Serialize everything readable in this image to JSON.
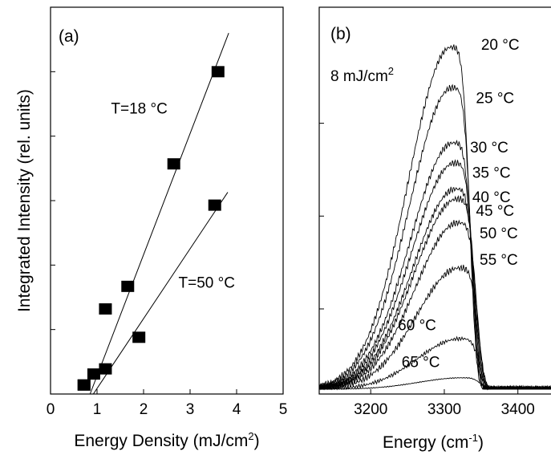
{
  "chart_data": [
    {
      "panel_label": "(a)",
      "type": "scatter",
      "xlabel": "Energy Density (mJ/cm",
      "xlabel_superscript": "2",
      "xlabel_suffix": ")",
      "ylabel": "Integrated Intensity (rel. units)",
      "xlim": [
        0,
        5
      ],
      "ylim": [
        0,
        6
      ],
      "x_ticks": [
        "0",
        "1",
        "2",
        "3",
        "4",
        "5"
      ],
      "y_ticks_labeled": false,
      "series": [
        {
          "name": "T=18 °C",
          "points": [
            {
              "x": 0.72,
              "y": 0.14
            },
            {
              "x": 0.93,
              "y": 0.31
            },
            {
              "x": 1.18,
              "y": 1.32
            },
            {
              "x": 1.66,
              "y": 1.67
            },
            {
              "x": 2.65,
              "y": 3.57
            },
            {
              "x": 3.6,
              "y": 5.0
            }
          ],
          "fit": [
            [
              0.85,
              0.0
            ],
            [
              3.83,
              5.6
            ]
          ],
          "label_pos": {
            "x": 1.3,
            "y": 4.35
          }
        },
        {
          "name": "T=50 °C",
          "points": [
            {
              "x": 0.72,
              "y": 0.14
            },
            {
              "x": 1.18,
              "y": 0.39
            },
            {
              "x": 1.9,
              "y": 0.88
            },
            {
              "x": 3.53,
              "y": 2.93
            }
          ],
          "fit": [
            [
              0.92,
              0.0
            ],
            [
              3.81,
              3.13
            ]
          ],
          "label_pos": {
            "x": 2.75,
            "y": 1.65
          }
        }
      ]
    },
    {
      "panel_label": "(b)",
      "type": "line",
      "xlabel": "Energy (cm",
      "xlabel_superscript": "-1",
      "xlabel_suffix": ")",
      "xlim": [
        3130,
        3445
      ],
      "ylim": [
        0,
        1
      ],
      "x_ticks": [
        "3200",
        "3300",
        "3400"
      ],
      "y_ticks_labeled": false,
      "annotation": "8 mJ/cm",
      "annotation_superscript": "2",
      "series": [
        {
          "name": "20 °C",
          "peak": 0.962
        },
        {
          "name": "25 °C",
          "peak": 0.848
        },
        {
          "name": "30 °C",
          "peak": 0.693
        },
        {
          "name": "35 °C",
          "peak": 0.636
        },
        {
          "name": "40 °C",
          "peak": 0.563
        },
        {
          "name": "45 °C",
          "peak": 0.535
        },
        {
          "name": "50 °C",
          "peak": 0.468
        },
        {
          "name": "55 °C",
          "peak": 0.341
        },
        {
          "name": "60 °C",
          "peak": 0.142
        },
        {
          "name": "65 °C",
          "peak": 0.032
        }
      ]
    }
  ]
}
